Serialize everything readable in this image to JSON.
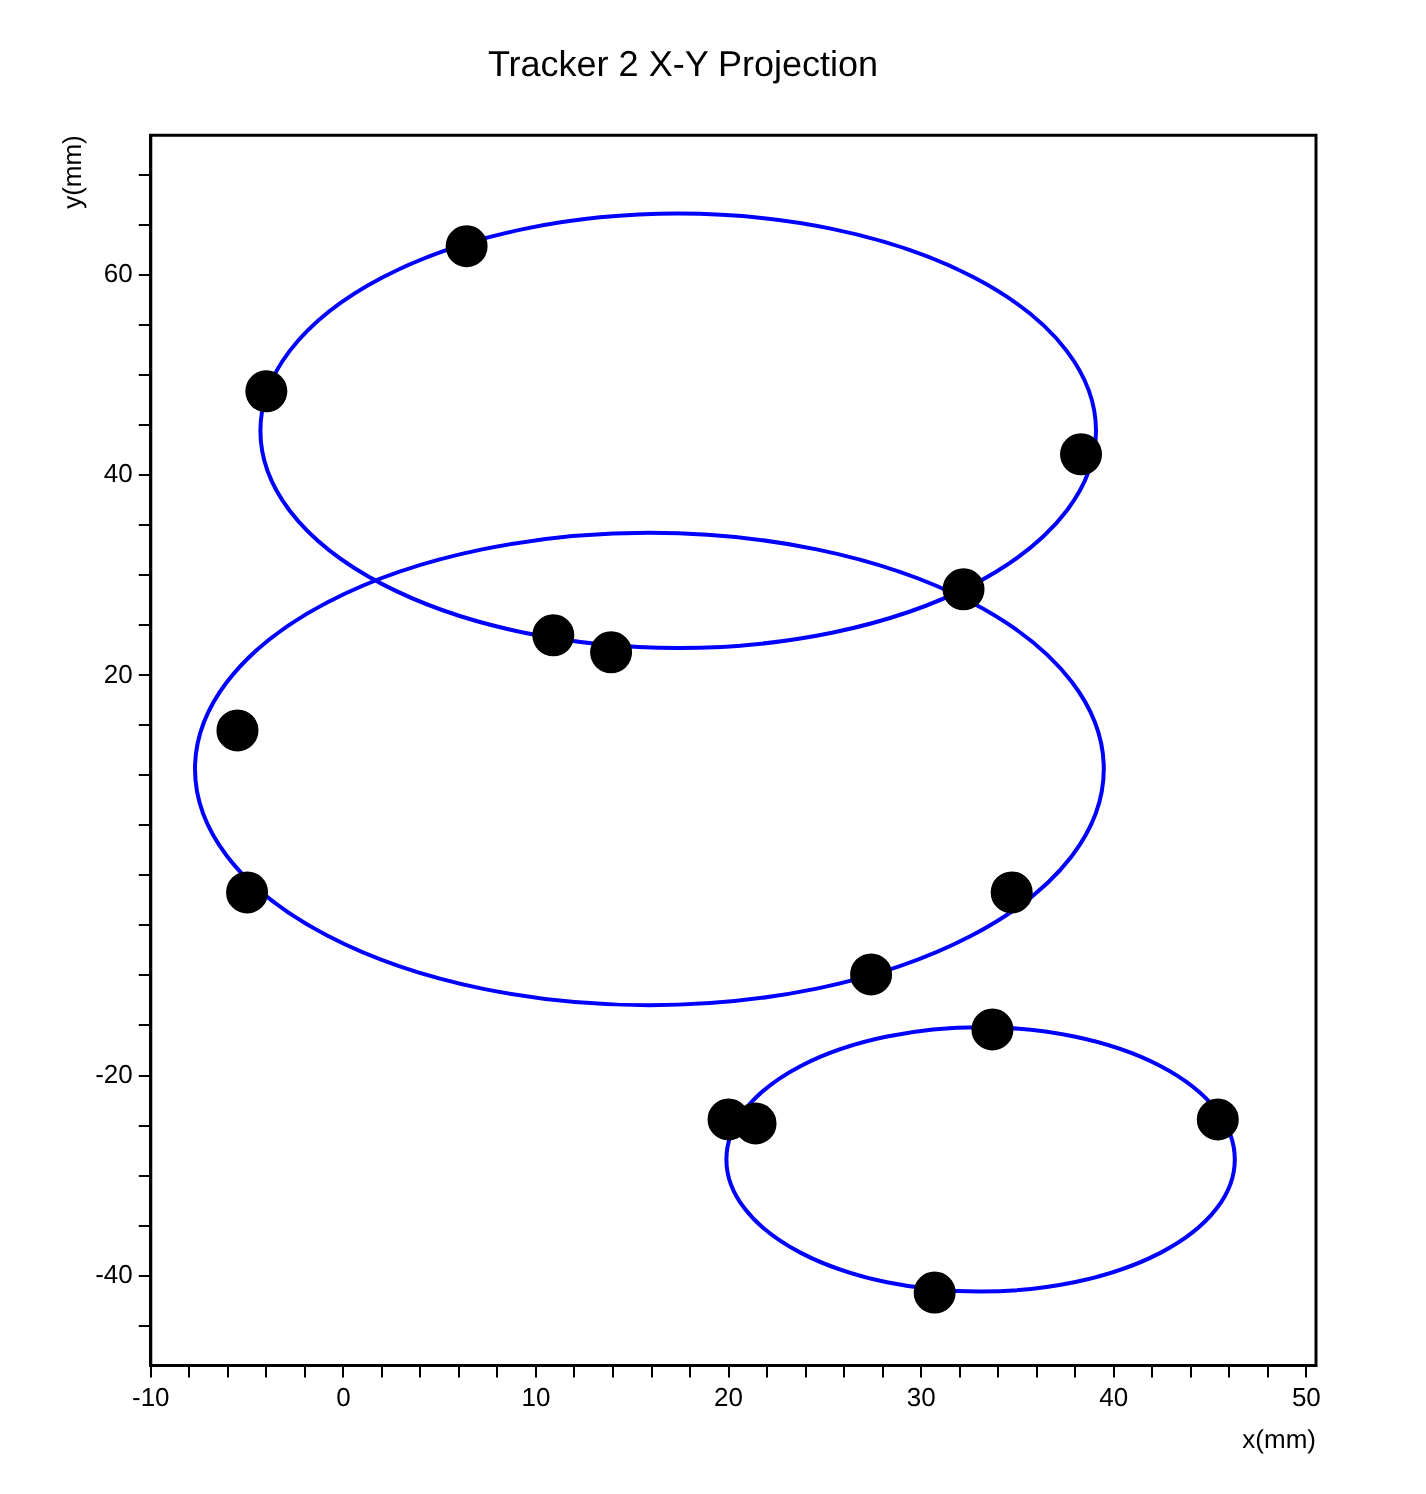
{
  "chart_data": {
    "type": "scatter",
    "title": "Tracker 2 X-Y Projection",
    "xlabel": "x(mm)",
    "ylabel": "y(mm)",
    "xlim": [
      -10,
      50.5
    ],
    "ylim": [
      -49,
      74
    ],
    "xticks": [
      -10,
      {
        "value": -8,
        "label": null
      },
      {
        "value": -6,
        "label": null
      },
      {
        "value": -4,
        "label": null
      },
      {
        "value": -2,
        "label": null
      },
      0,
      {
        "value": 2,
        "label": null
      },
      {
        "value": 4,
        "label": null
      },
      {
        "value": 6,
        "label": null
      },
      {
        "value": 8,
        "label": null
      },
      10,
      {
        "value": 12,
        "label": null
      },
      {
        "value": 14,
        "label": null
      },
      {
        "value": 16,
        "label": null
      },
      {
        "value": 18,
        "label": null
      },
      20,
      {
        "value": 22,
        "label": null
      },
      {
        "value": 24,
        "label": null
      },
      {
        "value": 26,
        "label": null
      },
      {
        "value": 28,
        "label": null
      },
      30,
      {
        "value": 32,
        "label": null
      },
      {
        "value": 34,
        "label": null
      },
      {
        "value": 36,
        "label": null
      },
      {
        "value": 38,
        "label": null
      },
      40,
      {
        "value": 42,
        "label": null
      },
      {
        "value": 44,
        "label": null
      },
      {
        "value": 46,
        "label": null
      },
      {
        "value": 48,
        "label": null
      },
      50
    ],
    "yticks": [
      {
        "value": -45,
        "label": null
      },
      -40,
      {
        "value": -35,
        "label": null
      },
      {
        "value": -30,
        "label": null
      },
      {
        "value": -25,
        "label": null
      },
      -20,
      {
        "value": -15,
        "label": null
      },
      {
        "value": -10,
        "label": null
      },
      {
        "value": -5,
        "label": null
      },
      {
        "value": 0,
        "label": null
      },
      {
        "value": 5,
        "label": null
      },
      {
        "value": 10,
        "label": null
      },
      {
        "value": 15,
        "label": null
      },
      20,
      {
        "value": 25,
        "label": null
      },
      {
        "value": 30,
        "label": null
      },
      {
        "value": 35,
        "label": null
      },
      40,
      {
        "value": 45,
        "label": null
      },
      {
        "value": 50,
        "label": null
      },
      {
        "value": 55,
        "label": null
      },
      60,
      {
        "value": 65,
        "label": null
      },
      {
        "value": 70,
        "label": null
      }
    ],
    "grid": false,
    "legend": false,
    "series": [
      {
        "type": "scatter",
        "color": "#000000",
        "marker": "circle",
        "x": [
          6.4,
          -4.0,
          38.3,
          32.2,
          10.9,
          13.9,
          -5.5,
          -5.0,
          34.7,
          27.4,
          33.7,
          20.0,
          21.4,
          45.4,
          30.7
        ],
        "values": [
          62.9,
          48.4,
          42.1,
          28.6,
          24.0,
          22.3,
          14.5,
          -1.7,
          -1.7,
          -9.9,
          -15.4,
          -24.4,
          -24.8,
          -24.4,
          -41.7
        ]
      }
    ]
  }
}
